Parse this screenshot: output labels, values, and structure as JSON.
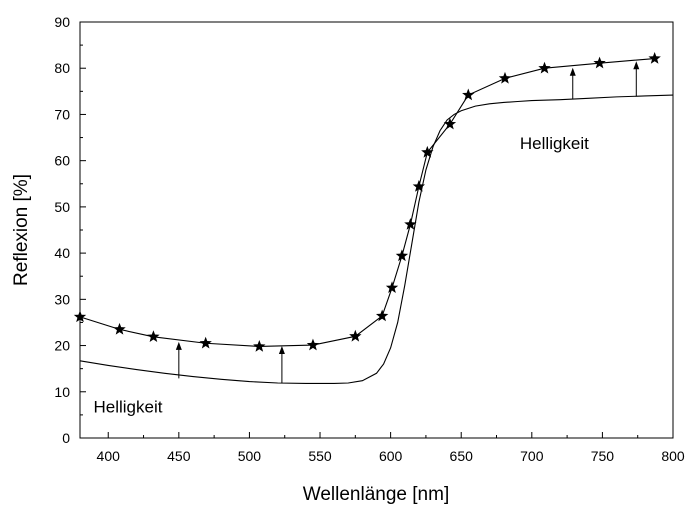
{
  "chart_data": {
    "type": "line",
    "title": "",
    "xlabel": "Wellenlänge [nm]",
    "ylabel": "Reflexion [%]",
    "xlim": [
      380,
      800
    ],
    "ylim": [
      0,
      90
    ],
    "x_ticks": [
      400,
      450,
      500,
      550,
      600,
      650,
      700,
      750,
      800
    ],
    "y_ticks": [
      0,
      10,
      20,
      30,
      40,
      50,
      60,
      70,
      80,
      90
    ],
    "grid": false,
    "legend": "none",
    "series": [
      {
        "marker": "none",
        "x": [
          380,
          400,
          420,
          440,
          460,
          480,
          500,
          520,
          540,
          560,
          570,
          580,
          590,
          595,
          600,
          605,
          610,
          615,
          620,
          625,
          630,
          635,
          640,
          645,
          650,
          660,
          670,
          680,
          690,
          700,
          720,
          740,
          760,
          780,
          800
        ],
        "y": [
          16.7,
          15.7,
          14.8,
          14.0,
          13.3,
          12.7,
          12.2,
          11.9,
          11.8,
          11.8,
          11.9,
          12.4,
          14.0,
          16.0,
          19.5,
          25.0,
          33.0,
          42.0,
          51.0,
          58.0,
          63.0,
          66.5,
          68.8,
          70.0,
          70.8,
          71.8,
          72.3,
          72.6,
          72.8,
          73.0,
          73.2,
          73.5,
          73.8,
          74.0,
          74.2
        ]
      },
      {
        "marker": "star",
        "x": [
          380,
          408,
          432,
          469,
          507,
          545,
          575,
          594,
          601,
          608,
          614,
          620,
          626,
          642,
          655,
          681,
          709,
          748,
          787
        ],
        "y": [
          26.2,
          23.5,
          21.9,
          20.5,
          19.8,
          20.1,
          22.0,
          26.4,
          32.5,
          39.4,
          46.2,
          54.4,
          61.8,
          67.9,
          74.2,
          77.8,
          80.0,
          81.1,
          82.1
        ]
      }
    ],
    "arrows": [
      {
        "x": 450,
        "from": 12.9,
        "to": 20.8
      },
      {
        "x": 523,
        "from": 11.9,
        "to": 19.9
      },
      {
        "x": 729,
        "from": 73.3,
        "to": 80.1
      },
      {
        "x": 774,
        "from": 73.9,
        "to": 81.5
      }
    ],
    "annotations": [
      {
        "text": "Helligkeit",
        "x": 414,
        "y": 5.5
      },
      {
        "text": "Helligkeit",
        "x": 716,
        "y": 62.5
      }
    ]
  }
}
